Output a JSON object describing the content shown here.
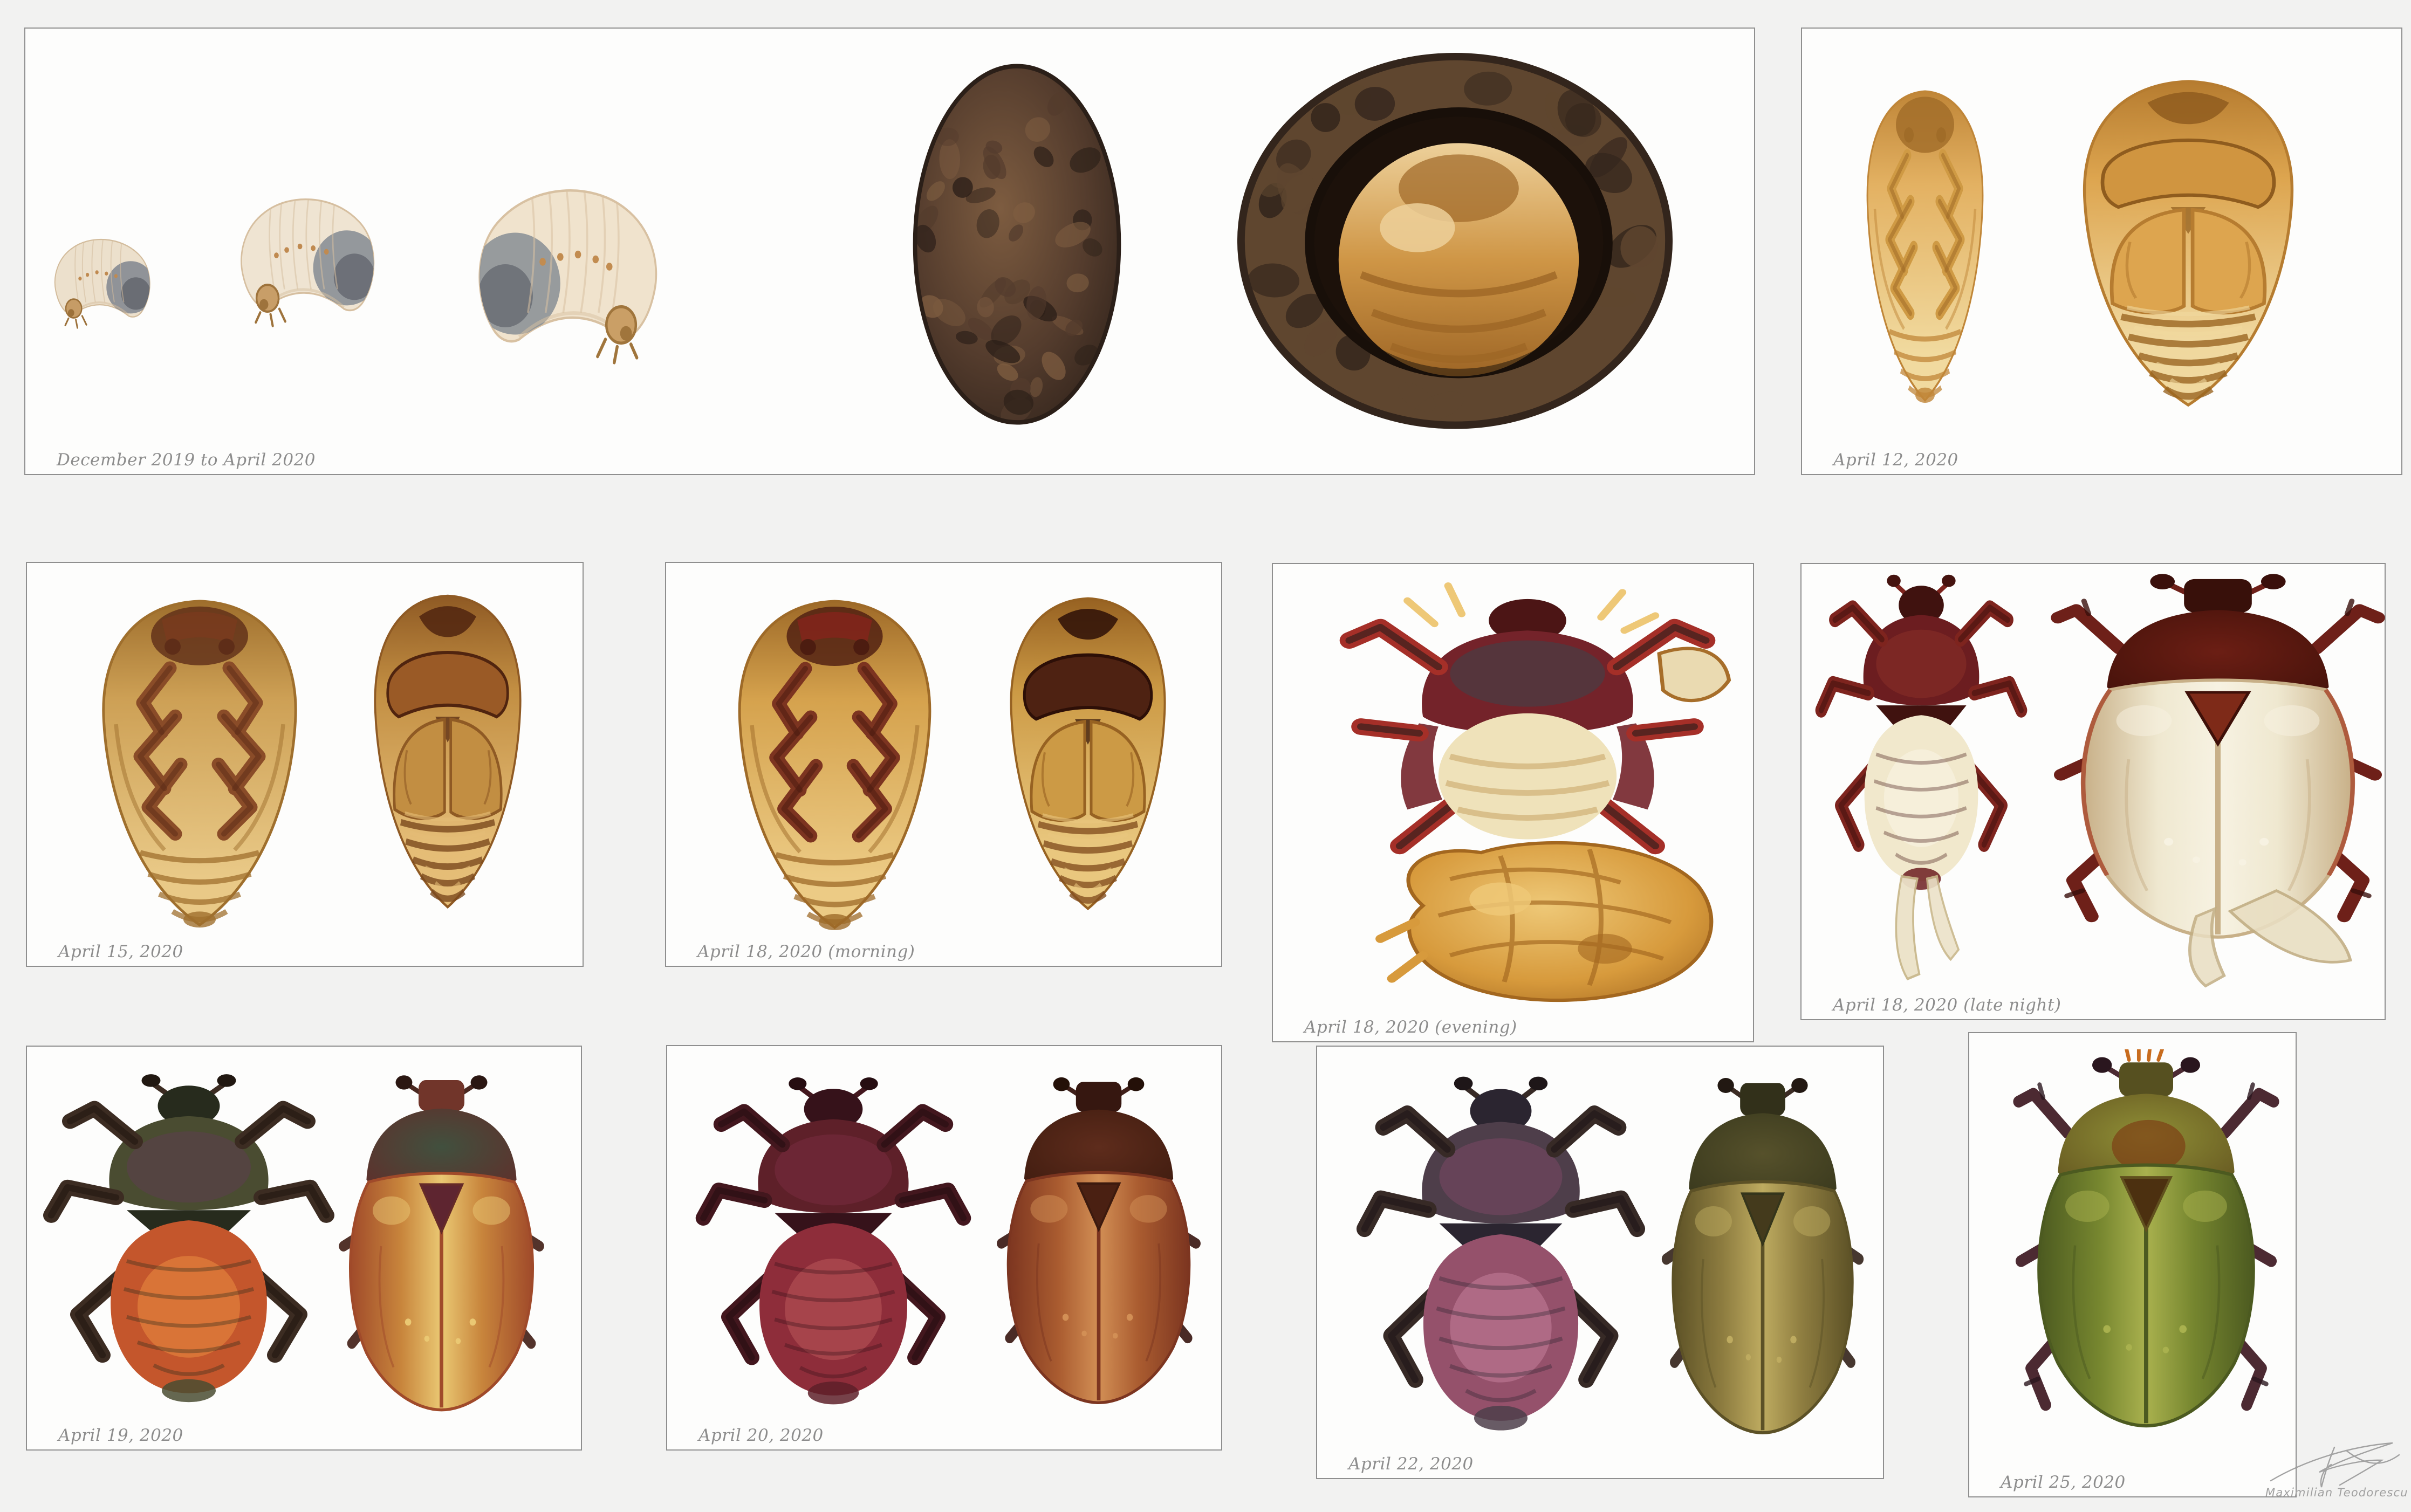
{
  "page": {
    "background": "#f2f2f1",
    "panel_background": "#fdfdfc",
    "panel_border_color": "#8f8f8f",
    "caption_color": "#8c8c8c"
  },
  "credit": {
    "signature_name": "Maximilian Teodorescu"
  },
  "panels": [
    {
      "id": "p1",
      "caption": "December 2019 to April 2020",
      "specimens": [
        {
          "kind": "larva",
          "variant": "flip",
          "palette": {
            "body": "#ece0cc",
            "shade": "#d3bc9c",
            "dark": "#868b92",
            "darkShade": "#60646c",
            "head": "#c69c66",
            "headDark": "#9c713a",
            "spiracle": "#c08a50"
          }
        },
        {
          "kind": "larva",
          "variant": "flip",
          "palette": {
            "body": "#efe4d2",
            "shade": "#d6bfa0",
            "dark": "#8a8f96",
            "darkShade": "#63676f",
            "head": "#c89e68",
            "headDark": "#9e733c",
            "spiracle": "#c08a50"
          }
        },
        {
          "kind": "larva",
          "variant": "",
          "palette": {
            "body": "#f0e3cd",
            "shade": "#d8c1a2",
            "dark": "#8d9298",
            "darkShade": "#666a72",
            "head": "#ca9f66",
            "headDark": "#a0753c",
            "spiracle": "#c28c50"
          }
        },
        {
          "kind": "cell-closed",
          "variant": "",
          "palette": {
            "light": "#7d5c40",
            "mid": "#543c2d",
            "dark": "#2b1f18"
          }
        },
        {
          "kind": "cell-open",
          "variant": "",
          "palette": {
            "rim": "#33251c",
            "rimLight": "#5f462f",
            "hole": "#1c110a",
            "pupa": "#cf9646",
            "pupaLight": "#edd09a",
            "pupaShade": "#9e6626"
          }
        }
      ]
    },
    {
      "id": "p2",
      "caption": "April 12, 2020",
      "specimens": [
        {
          "kind": "pupa-ventral",
          "variant": "",
          "palette": {
            "base": "#e3b162",
            "light": "#f1da9f",
            "shade": "#c08638",
            "legs": "#cf9a44",
            "dark": "#a06c28"
          }
        },
        {
          "kind": "pupa-dorsal",
          "variant": "",
          "palette": {
            "base": "#dda54f",
            "light": "#f0d89f",
            "shade": "#b67c30",
            "bands": "#9a6522",
            "pronotum": "#d09540",
            "pronotumDark": "#8f5c1e"
          }
        }
      ]
    },
    {
      "id": "p3",
      "caption": "April 15, 2020",
      "specimens": [
        {
          "kind": "pupa-ventral",
          "variant": "",
          "palette": {
            "base": "#cda055",
            "light": "#e9c987",
            "shade": "#9f6f2d",
            "legs": "#8a4c28",
            "dark": "#5e2d18",
            "accent": "#7c3a1e"
          }
        },
        {
          "kind": "pupa-dorsal",
          "variant": "",
          "palette": {
            "base": "#c28e42",
            "light": "#e5bd77",
            "shade": "#8f5a24",
            "bands": "#7a481d",
            "pronotum": "#9a5a26",
            "pronotumDark": "#50240f"
          }
        }
      ]
    },
    {
      "id": "p4",
      "caption": "April 18, 2020 (morning)",
      "specimens": [
        {
          "kind": "pupa-ventral",
          "variant": "",
          "palette": {
            "base": "#d5a24d",
            "light": "#eccb85",
            "shade": "#9e6a28",
            "legs": "#7c3420",
            "dark": "#4c1c10",
            "accent": "#8a221c"
          }
        },
        {
          "kind": "pupa-dorsal",
          "variant": "",
          "palette": {
            "base": "#cc9a45",
            "light": "#e9c77e",
            "shade": "#976222",
            "bands": "#845020",
            "pronotum": "#4e2212",
            "pronotumDark": "#2d0f07"
          }
        }
      ]
    },
    {
      "id": "p5",
      "caption": "April 18, 2020 (evening)",
      "specimens": [
        {
          "kind": "emerging",
          "variant": "",
          "palette": {
            "head": "#4c1515",
            "pronotum": "#74232a",
            "teal": "#36474e",
            "abdomen": "#efe2ba",
            "abdomenShade": "#d3b67e",
            "legs": "#a52f28",
            "legDark": "#38201c",
            "exuvia": "#d79a3c",
            "exuviaLight": "#eec877",
            "exuviaShade": "#a3671f",
            "wing": "#ead9ae"
          }
        }
      ]
    },
    {
      "id": "p6",
      "caption": "April 18, 2020 (late night)",
      "specimens": [
        {
          "kind": "adult-ventral",
          "variant": "teneral-wings",
          "palette": {
            "thorax": "#6c1d20",
            "thoraxDark": "#40120f",
            "purple": "#8c3128",
            "abdomen": "#f1e8cc",
            "abdomenLight": "#f8f2e0",
            "legs": "#7e241e",
            "legDark": "#45130f",
            "wing": "#ece2c8",
            "wingShade": "#c9b88c"
          }
        },
        {
          "kind": "adult-dorsal",
          "variant": "teneral",
          "palette": {
            "elytra": "#efe8d0",
            "elytraLight": "#f7f2e2",
            "elytraEdge": "#c8b088",
            "elytraShade": "#c2ae84",
            "pronotum": "#6b1e14",
            "pronotumEdge": "#3f1009",
            "head": "#38100a",
            "scutellum": "#7e2a18",
            "legs": "#6e2019",
            "legDark": "#3a0f0b",
            "margin": "#a8462a",
            "wing": "#e9dec2"
          }
        }
      ]
    },
    {
      "id": "p7",
      "caption": "April 19, 2020",
      "specimens": [
        {
          "kind": "adult-ventral",
          "variant": "",
          "palette": {
            "thorax": "#4a4c31",
            "thoraxDark": "#272b1d",
            "purple": "#5e3c52",
            "abdomen": "#c4562c",
            "abdomenLight": "#e2813c",
            "legs": "#3c2c22",
            "legDark": "#211811"
          }
        },
        {
          "kind": "adult-dorsal",
          "variant": "",
          "palette": {
            "elytra": "#c8853c",
            "elytraLight": "#eac873",
            "elytraEdge": "#a04a2a",
            "pronotum": "#41503e",
            "pronotumEdge": "#652a28",
            "scutellum": "#5e2530",
            "head": "#71352a",
            "legs": "#4a2820",
            "legDark": "#2b1712"
          }
        }
      ]
    },
    {
      "id": "p8",
      "caption": "April 20, 2020",
      "specimens": [
        {
          "kind": "adult-ventral",
          "variant": "",
          "palette": {
            "thorax": "#5e2029",
            "thoraxDark": "#36121a",
            "purple": "#7a2c42",
            "abdomen": "#8e2d3a",
            "abdomenLight": "#b04f52",
            "legs": "#43171e",
            "legDark": "#260d11"
          }
        },
        {
          "kind": "adult-dorsal",
          "variant": "",
          "palette": {
            "elytra": "#aa5c30",
            "elytraLight": "#d28f55",
            "elytraEdge": "#7c3520",
            "pronotum": "#5e2c1c",
            "pronotumEdge": "#3c1a0e",
            "scutellum": "#4a2012",
            "head": "#361710",
            "legs": "#40201a",
            "legDark": "#241008"
          }
        }
      ]
    },
    {
      "id": "p9",
      "caption": "April 22, 2020",
      "specimens": [
        {
          "kind": "adult-ventral",
          "variant": "",
          "palette": {
            "thorax": "#4e3e4a",
            "thoraxDark": "#2b2530",
            "purple": "#7e4766",
            "abdomen": "#95516b",
            "abdomenLight": "#ba7590",
            "legs": "#372a26",
            "legDark": "#1e1618"
          }
        },
        {
          "kind": "adult-dorsal",
          "variant": "",
          "palette": {
            "elytra": "#8e7d40",
            "elytraLight": "#beab60",
            "elytraEdge": "#5c5126",
            "pronotum": "#56512b",
            "pronotumEdge": "#35351b",
            "scutellum": "#443a1c",
            "head": "#32301a",
            "legs": "#3c2c24",
            "legDark": "#221812"
          }
        }
      ]
    },
    {
      "id": "p10",
      "caption": "April 25, 2020",
      "specimens": [
        {
          "kind": "adult-dorsal",
          "variant": "spiky",
          "palette": {
            "elytra": "#76862f",
            "elytraLight": "#a9b14e",
            "elytraEdge": "#4c5a20",
            "pronotum": "#8f8f36",
            "pronotumEdge": "#60501e",
            "pronotumPatch": "#7c3a12",
            "scutellum": "#4c3010",
            "head": "#565020",
            "legs": "#4c2a32",
            "legDark": "#2a161e",
            "bristles": "#c86c1e"
          }
        }
      ]
    }
  ]
}
